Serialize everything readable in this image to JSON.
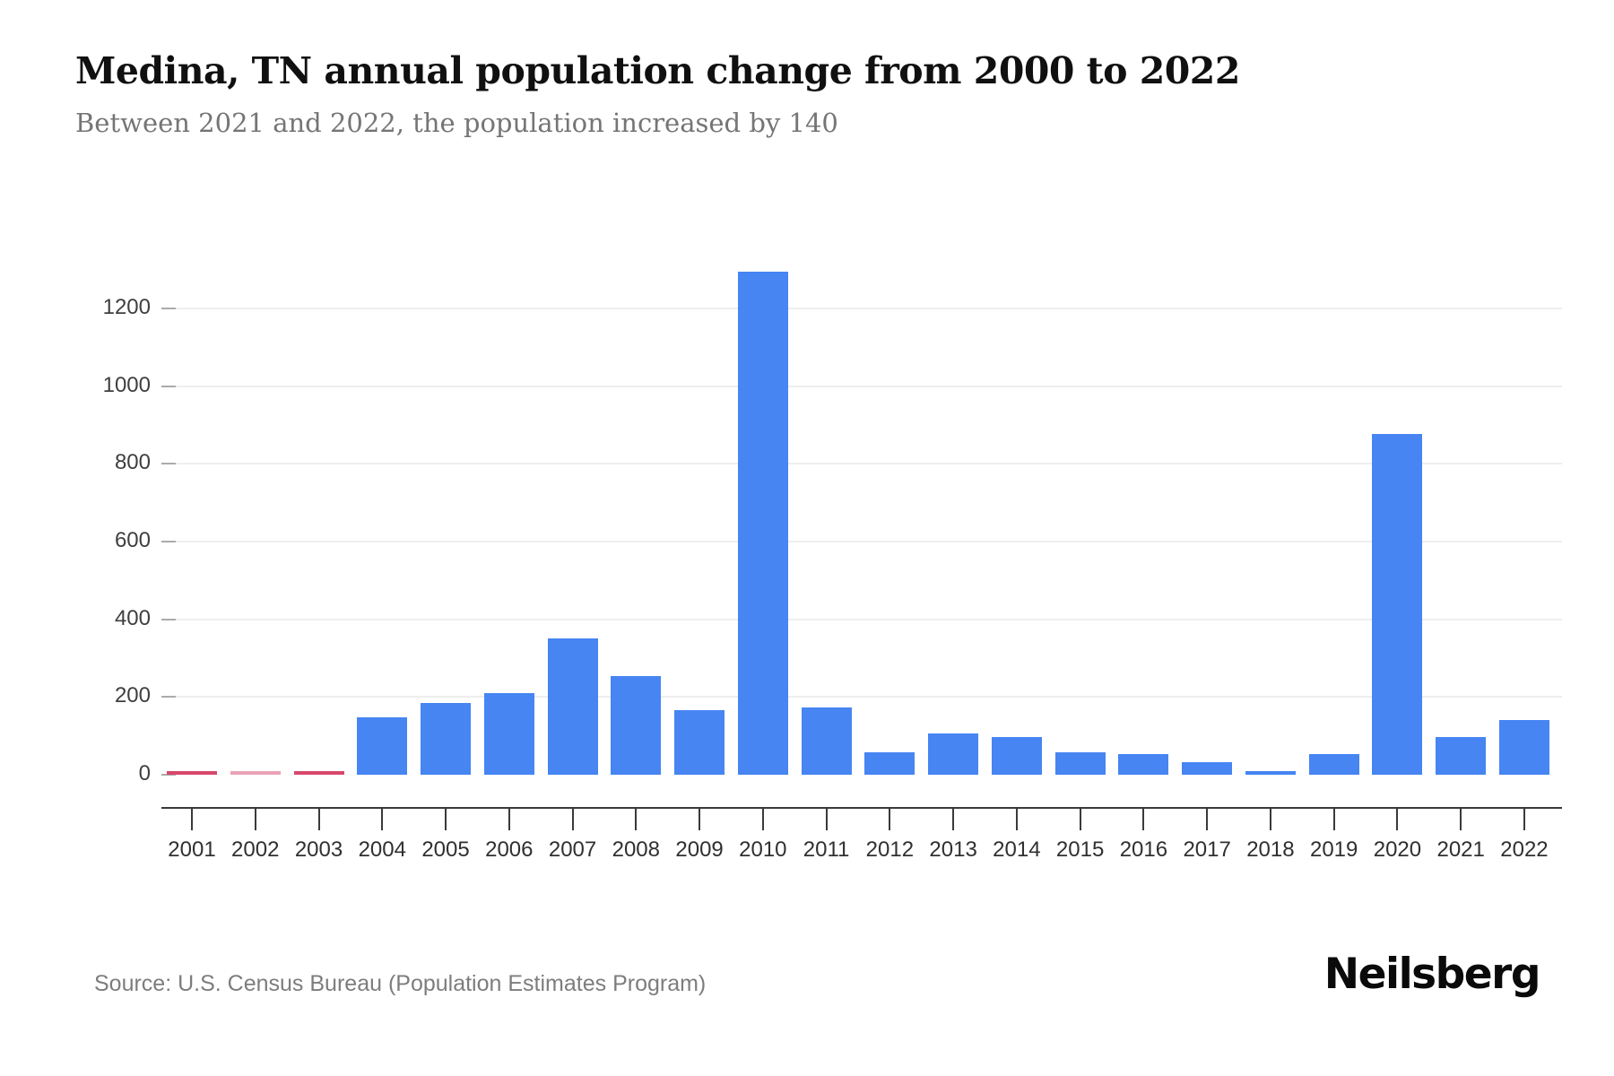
{
  "header": {
    "title": "Medina, TN annual population change from 2000 to 2022",
    "subtitle": "Between 2021 and 2022, the population increased by 140"
  },
  "footer": {
    "source": "Source: U.S. Census Bureau (Population Estimates Program)",
    "brand": "Neilsberg"
  },
  "chart_data": {
    "type": "bar",
    "title": "Medina, TN annual population change from 2000 to 2022",
    "subtitle": "Between 2021 and 2022, the population increased by 140",
    "xlabel": "",
    "ylabel": "",
    "categories": [
      "2001",
      "2002",
      "2003",
      "2004",
      "2005",
      "2006",
      "2007",
      "2008",
      "2009",
      "2010",
      "2011",
      "2012",
      "2013",
      "2014",
      "2015",
      "2016",
      "2017",
      "2018",
      "2019",
      "2020",
      "2021",
      "2022"
    ],
    "values": [
      -2,
      -1,
      -3,
      148,
      185,
      210,
      350,
      253,
      165,
      1295,
      172,
      58,
      107,
      98,
      58,
      54,
      32,
      8,
      54,
      876,
      97,
      140
    ],
    "yticks": [
      0,
      200,
      400,
      600,
      800,
      1000,
      1200
    ],
    "ylim": [
      -20,
      1300
    ],
    "grid": "horizontal-only",
    "legend": "none",
    "colors": {
      "positive_bar": "#4685f2",
      "negative_bar": "#d8476c",
      "negative_bar_light": "#e9a3b6",
      "gridline": "#eeeeee",
      "axis": "#3a3a3a"
    },
    "point_color_overrides": {
      "2001": "#d8476c",
      "2002": "#e9a3b6",
      "2003": "#d8476c"
    }
  }
}
